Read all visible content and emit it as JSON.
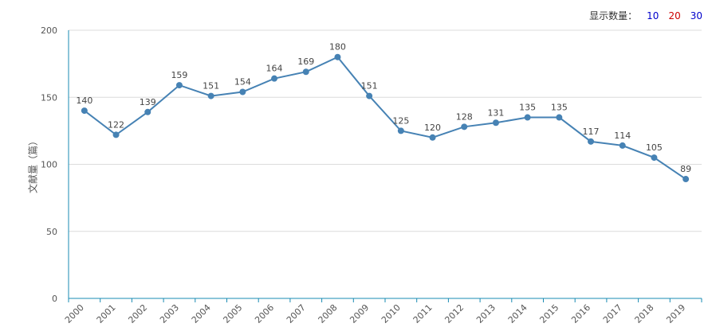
{
  "controls": {
    "label": "显示数量：",
    "options": [
      {
        "label": "10",
        "color": "#0000cc"
      },
      {
        "label": "20",
        "color": "#cc0000"
      },
      {
        "label": "30",
        "color": "#0000cc"
      }
    ]
  },
  "chart_data": {
    "type": "line",
    "ylabel": "文献量（篇）",
    "ylim": [
      0,
      200
    ],
    "yticks": [
      0,
      50,
      100,
      150,
      200
    ],
    "grid": true,
    "categories": [
      "2000",
      "2001",
      "2002",
      "2003",
      "2004",
      "2005",
      "2006",
      "2007",
      "2008",
      "2009",
      "2010",
      "2011",
      "2012",
      "2013",
      "2014",
      "2015",
      "2016",
      "2017",
      "2018",
      "2019"
    ],
    "values": [
      140,
      122,
      139,
      159,
      151,
      154,
      164,
      169,
      180,
      151,
      125,
      120,
      128,
      131,
      135,
      135,
      117,
      114,
      105,
      89
    ],
    "line_color": "#4682b4",
    "axis_color": "#1a8bb3"
  }
}
